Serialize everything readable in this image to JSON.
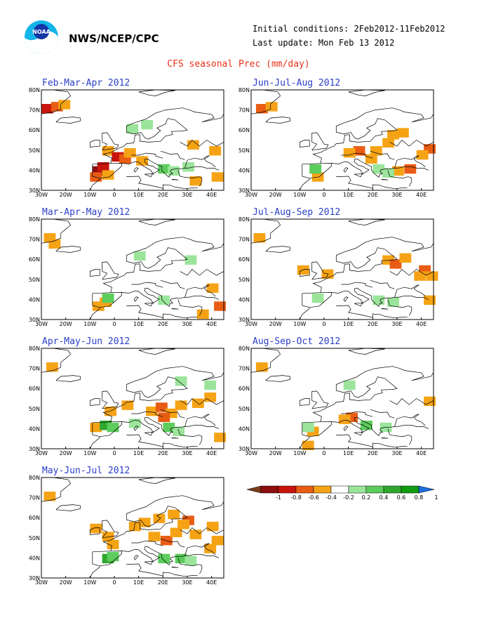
{
  "header": {
    "agency": "NWS/NCEP/CPC",
    "initial_conditions": "Initial conditions: 2Feb2012-11Feb2012",
    "last_update": "Last update: Mon Feb 13 2012",
    "title": "CFS seasonal Prec (mm/day)",
    "logo_text": "NOAA"
  },
  "axes": {
    "x_ticks": [
      "30W",
      "20W",
      "10W",
      "0",
      "10E",
      "20E",
      "30E",
      "40E"
    ],
    "y_ticks": [
      "80N",
      "70N",
      "60N",
      "50N",
      "40N",
      "30N"
    ],
    "xlim": [
      -30,
      45
    ],
    "ylim": [
      30,
      80
    ]
  },
  "colors": {
    "map_line": "#000000",
    "wet_light": "#9be59b",
    "wet_mid": "#5ccc5c",
    "wet_strong": "#2fa72f",
    "dry_light": "#f5a315",
    "dry_mid": "#e95c14",
    "dry_strong": "#c8140c",
    "dry_extreme": "#8c0e0e"
  },
  "chart_data": {
    "type": "heatmap",
    "title": "CFS seasonal Prec (mm/day)",
    "panels": [
      {
        "title": "Feb-Mar-Apr 2012",
        "anomalies": [
          {
            "lon": -28,
            "lat": 71,
            "v": -0.8
          },
          {
            "lon": -24,
            "lat": 72,
            "v": -0.6
          },
          {
            "lon": -21,
            "lat": 73,
            "v": -0.4
          },
          {
            "lon": -7,
            "lat": 40,
            "v": -1
          },
          {
            "lon": -5,
            "lat": 42,
            "v": -0.8
          },
          {
            "lon": -8,
            "lat": 37,
            "v": -0.6
          },
          {
            "lon": -3,
            "lat": 38,
            "v": -0.4
          },
          {
            "lon": -3,
            "lat": 50,
            "v": -0.4
          },
          {
            "lon": 1,
            "lat": 47,
            "v": -0.8
          },
          {
            "lon": 4,
            "lat": 46,
            "v": -0.6
          },
          {
            "lon": 6,
            "lat": 49,
            "v": -0.4
          },
          {
            "lon": 11,
            "lat": 45,
            "v": -0.4
          },
          {
            "lon": 32,
            "lat": 53,
            "v": -0.4
          },
          {
            "lon": 41,
            "lat": 50,
            "v": -0.4
          },
          {
            "lon": 33,
            "lat": 35,
            "v": -0.4
          },
          {
            "lon": 42,
            "lat": 37,
            "v": -0.4
          },
          {
            "lon": 13,
            "lat": 63,
            "v": 0.2
          },
          {
            "lon": 7,
            "lat": 61,
            "v": 0.2
          },
          {
            "lon": 20,
            "lat": 41,
            "v": 0.4
          },
          {
            "lon": 24,
            "lat": 40,
            "v": 0.2
          },
          {
            "lon": 30,
            "lat": 42,
            "v": 0.2
          }
        ]
      },
      {
        "title": "Jun-Jul-Aug 2012",
        "anomalies": [
          {
            "lon": -26,
            "lat": 71,
            "v": -0.6
          },
          {
            "lon": -22,
            "lat": 72,
            "v": -0.4
          },
          {
            "lon": 21,
            "lat": 50,
            "v": -0.4
          },
          {
            "lon": 14,
            "lat": 50,
            "v": -0.6
          },
          {
            "lon": 10,
            "lat": 49,
            "v": -0.4
          },
          {
            "lon": 26,
            "lat": 54,
            "v": -0.4
          },
          {
            "lon": 28,
            "lat": 58,
            "v": -0.4
          },
          {
            "lon": 32,
            "lat": 59,
            "v": -0.4
          },
          {
            "lon": 43,
            "lat": 51,
            "v": -0.6
          },
          {
            "lon": 40,
            "lat": 48,
            "v": -0.4
          },
          {
            "lon": 35,
            "lat": 41,
            "v": -0.6
          },
          {
            "lon": 30,
            "lat": 40,
            "v": -0.4
          },
          {
            "lon": 19,
            "lat": 46,
            "v": -0.4
          },
          {
            "lon": -3,
            "lat": 37,
            "v": -0.4
          },
          {
            "lon": -4,
            "lat": 41,
            "v": 0.4
          },
          {
            "lon": 22,
            "lat": 41,
            "v": 0.2
          },
          {
            "lon": 26,
            "lat": 39,
            "v": 0.2
          }
        ]
      },
      {
        "title": "Mar-Apr-May 2012",
        "anomalies": [
          {
            "lon": -27,
            "lat": 71,
            "v": -0.4
          },
          {
            "lon": -4,
            "lat": 39,
            "v": -0.4
          },
          {
            "lon": -7,
            "lat": 37,
            "v": -0.4
          },
          {
            "lon": 40,
            "lat": 46,
            "v": -0.4
          },
          {
            "lon": 43,
            "lat": 37,
            "v": -0.6
          },
          {
            "lon": 36,
            "lat": 33,
            "v": -0.4
          },
          {
            "lon": -25,
            "lat": 68,
            "v": -0.4
          },
          {
            "lon": -3,
            "lat": 41,
            "v": 0.4
          },
          {
            "lon": 20,
            "lat": 40,
            "v": 0.2
          },
          {
            "lon": 10,
            "lat": 62,
            "v": 0.2
          },
          {
            "lon": 31,
            "lat": 60,
            "v": 0.2
          }
        ]
      },
      {
        "title": "Jul-Aug-Sep 2012",
        "anomalies": [
          {
            "lon": -27,
            "lat": 71,
            "v": -0.4
          },
          {
            "lon": 26,
            "lat": 60,
            "v": -0.4
          },
          {
            "lon": 29,
            "lat": 58,
            "v": -0.6
          },
          {
            "lon": 33,
            "lat": 61,
            "v": -0.4
          },
          {
            "lon": 41,
            "lat": 55,
            "v": -0.6
          },
          {
            "lon": 44,
            "lat": 52,
            "v": -0.4
          },
          {
            "lon": 39,
            "lat": 52,
            "v": -0.4
          },
          {
            "lon": 1,
            "lat": 53,
            "v": -0.4
          },
          {
            "lon": -9,
            "lat": 55,
            "v": -0.4
          },
          {
            "lon": 43,
            "lat": 40,
            "v": -0.4
          },
          {
            "lon": 22,
            "lat": 40,
            "v": 0.2
          },
          {
            "lon": 28,
            "lat": 39,
            "v": 0.2
          },
          {
            "lon": -3,
            "lat": 41,
            "v": 0.2
          }
        ]
      },
      {
        "title": "Apr-May-Jun 2012",
        "anomalies": [
          {
            "lon": -26,
            "lat": 71,
            "v": -0.4
          },
          {
            "lon": -8,
            "lat": 41,
            "v": -0.4
          },
          {
            "lon": 5,
            "lat": 52,
            "v": -0.4
          },
          {
            "lon": 15,
            "lat": 49,
            "v": -0.4
          },
          {
            "lon": 19,
            "lat": 51,
            "v": -0.6
          },
          {
            "lon": 23,
            "lat": 48,
            "v": -0.4
          },
          {
            "lon": 27,
            "lat": 52,
            "v": -0.4
          },
          {
            "lon": 34,
            "lat": 53,
            "v": -0.4
          },
          {
            "lon": 39,
            "lat": 56,
            "v": -0.4
          },
          {
            "lon": 20,
            "lat": 46,
            "v": -0.6
          },
          {
            "lon": -2,
            "lat": 49,
            "v": -0.4
          },
          {
            "lon": 43,
            "lat": 36,
            "v": -0.4
          },
          {
            "lon": -4,
            "lat": 42,
            "v": 0.8
          },
          {
            "lon": -1,
            "lat": 41,
            "v": 0.4
          },
          {
            "lon": 22,
            "lat": 41,
            "v": 0.4
          },
          {
            "lon": 26,
            "lat": 39,
            "v": 0.2
          },
          {
            "lon": 8,
            "lat": 43,
            "v": 0.2
          },
          {
            "lon": 27,
            "lat": 64,
            "v": 0.2
          },
          {
            "lon": 39,
            "lat": 62,
            "v": 0.2
          }
        ]
      },
      {
        "title": "Aug-Sep-Oct 2012",
        "anomalies": [
          {
            "lon": -26,
            "lat": 71,
            "v": -0.4
          },
          {
            "lon": 11,
            "lat": 46,
            "v": -0.6
          },
          {
            "lon": 8,
            "lat": 45,
            "v": -0.4
          },
          {
            "lon": 43,
            "lat": 54,
            "v": -0.4
          },
          {
            "lon": -5,
            "lat": 39,
            "v": -0.4
          },
          {
            "lon": -7,
            "lat": 32,
            "v": -0.4
          },
          {
            "lon": -7,
            "lat": 41,
            "v": 0.2
          },
          {
            "lon": 25,
            "lat": 41,
            "v": 0.2
          },
          {
            "lon": 17,
            "lat": 42,
            "v": 0.4
          },
          {
            "lon": 10,
            "lat": 62,
            "v": 0.2
          }
        ]
      },
      {
        "title": "May-Jun-Jul 2012",
        "anomalies": [
          {
            "lon": -27,
            "lat": 71,
            "v": -0.4
          },
          {
            "lon": 18,
            "lat": 60,
            "v": -0.4
          },
          {
            "lon": 24,
            "lat": 62,
            "v": -0.4
          },
          {
            "lon": 30,
            "lat": 59,
            "v": -0.6
          },
          {
            "lon": 28,
            "lat": 57,
            "v": -0.4
          },
          {
            "lon": 12,
            "lat": 58,
            "v": -0.4
          },
          {
            "lon": 8,
            "lat": 56,
            "v": -0.4
          },
          {
            "lon": 16,
            "lat": 51,
            "v": -0.4
          },
          {
            "lon": 21,
            "lat": 49,
            "v": -0.6
          },
          {
            "lon": 25,
            "lat": 53,
            "v": -0.4
          },
          {
            "lon": 33,
            "lat": 52,
            "v": -0.4
          },
          {
            "lon": 40,
            "lat": 56,
            "v": -0.4
          },
          {
            "lon": 42,
            "lat": 49,
            "v": -0.4
          },
          {
            "lon": -8,
            "lat": 55,
            "v": -0.4
          },
          {
            "lon": -3,
            "lat": 51,
            "v": -0.4
          },
          {
            "lon": -1,
            "lat": 47,
            "v": -0.4
          },
          {
            "lon": 39,
            "lat": 45,
            "v": -0.4
          },
          {
            "lon": -3,
            "lat": 40,
            "v": 0.8
          },
          {
            "lon": -1,
            "lat": 41,
            "v": 0.4
          },
          {
            "lon": 20,
            "lat": 40,
            "v": 0.4
          },
          {
            "lon": 27,
            "lat": 40,
            "v": 0.4
          },
          {
            "lon": 31,
            "lat": 39,
            "v": 0.2
          }
        ]
      }
    ],
    "legend": {
      "ticks": [
        "-1",
        "-0.8",
        "-0.6",
        "-0.4",
        "-0.2",
        "0.2",
        "0.4",
        "0.6",
        "0.8",
        "1"
      ],
      "colors": [
        "#8c0e0e",
        "#c8140c",
        "#e95c14",
        "#f5a315",
        "#ffffff",
        "#9be59b",
        "#5ccc5c",
        "#2fa72f",
        "#109c10"
      ],
      "low_end": "#7a3b1a",
      "high_end": "#1f6fe0"
    }
  }
}
